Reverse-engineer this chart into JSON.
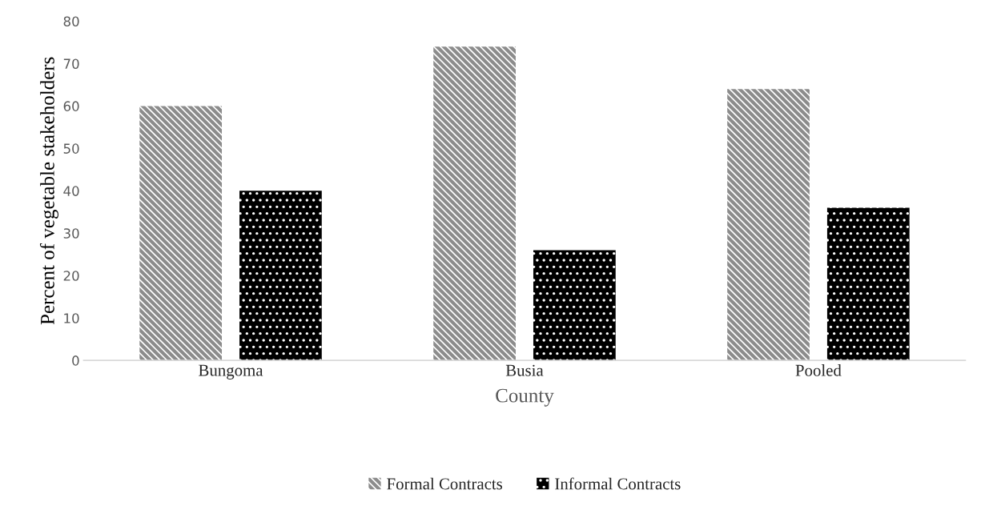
{
  "chart_data": {
    "type": "bar",
    "xlabel": "County",
    "ylabel": "Percent of vegetable stakeholders",
    "categories": [
      "Bungoma",
      "Busia",
      "Pooled"
    ],
    "series": [
      {
        "name": "Formal Contracts",
        "color": "#8c8c8c",
        "values": [
          60,
          74,
          64
        ]
      },
      {
        "name": "Informal Contracts",
        "color": "#000000",
        "values": [
          40,
          26,
          36
        ]
      }
    ],
    "ylim": [
      0,
      80
    ],
    "yticks": [
      0,
      10,
      20,
      30,
      40,
      50,
      60,
      70,
      80
    ],
    "grid": false,
    "legend": "bottom"
  }
}
